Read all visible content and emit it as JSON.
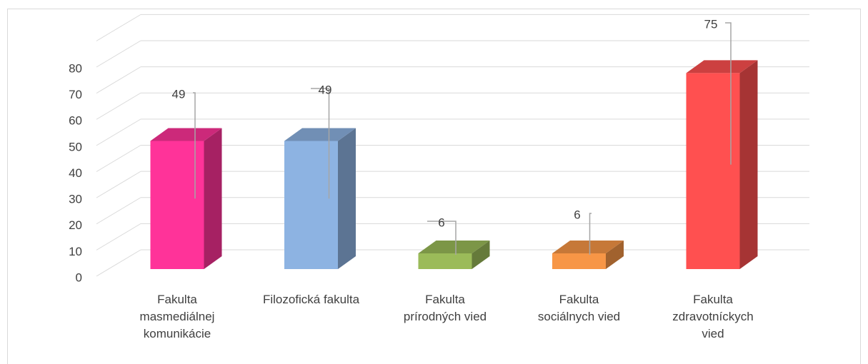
{
  "chart_data": {
    "type": "bar3d",
    "categories": [
      "Fakulta masmediálnej komunikácie",
      "Filozofická fakulta",
      "Fakulta prírodných vied",
      "Fakulta sociálnych vied",
      "Fakulta zdravotníckych vied"
    ],
    "values": [
      49,
      49,
      6,
      6,
      75
    ],
    "colors": [
      "#ff3399",
      "#8db3e2",
      "#9bbb59",
      "#f79646",
      "#ff5050"
    ],
    "ylim": [
      0,
      80
    ],
    "yticks": [
      0,
      10,
      20,
      30,
      40,
      50,
      60,
      70,
      80
    ],
    "grid": true
  }
}
